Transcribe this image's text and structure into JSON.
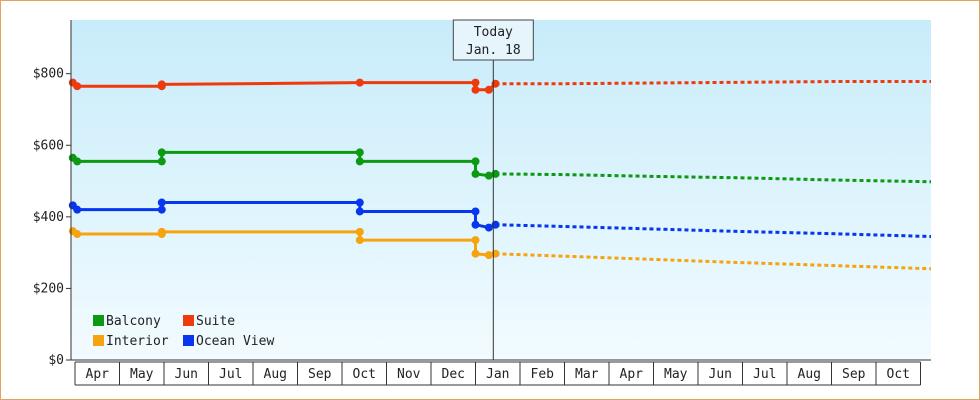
{
  "chart_data": {
    "type": "line",
    "title": "",
    "xlabel": "",
    "ylabel": "",
    "ylim": [
      0,
      950
    ],
    "y_ticks": [
      {
        "value": 0,
        "label": "$0"
      },
      {
        "value": 200,
        "label": "$200"
      },
      {
        "value": 400,
        "label": "$400"
      },
      {
        "value": 600,
        "label": "$600"
      },
      {
        "value": 800,
        "label": "$800"
      }
    ],
    "x_ticks": [
      "Apr",
      "May",
      "Jun",
      "Jul",
      "Aug",
      "Sep",
      "Oct",
      "Nov",
      "Dec",
      "Jan",
      "Feb",
      "Mar",
      "Apr",
      "May",
      "Jun",
      "Jul",
      "Aug",
      "Sep",
      "Oct"
    ],
    "grid": false,
    "legend_position": "bottom-left",
    "today_marker": {
      "line1": "Today",
      "line2": "Jan. 18",
      "x": 9.4
    },
    "series": [
      {
        "name": "Suite",
        "color": "#ee3a0c",
        "history": [
          [
            -0.05,
            775
          ],
          [
            0.05,
            765
          ],
          [
            1.95,
            765
          ],
          [
            1.95,
            770
          ],
          [
            6.4,
            775
          ],
          [
            9.0,
            775
          ],
          [
            9.0,
            755
          ],
          [
            9.3,
            755
          ],
          [
            9.45,
            772
          ]
        ],
        "forecast": [
          [
            9.45,
            772
          ],
          [
            11.0,
            772
          ],
          [
            13.0,
            774
          ],
          [
            15.0,
            776
          ],
          [
            17.0,
            778
          ],
          [
            19.3,
            778
          ]
        ],
        "markers": [
          [
            -0.05,
            775
          ],
          [
            0.05,
            765
          ],
          [
            1.95,
            765
          ],
          [
            1.95,
            770
          ],
          [
            6.4,
            775
          ],
          [
            9.0,
            775
          ],
          [
            9.0,
            755
          ],
          [
            9.3,
            755
          ],
          [
            9.45,
            772
          ]
        ]
      },
      {
        "name": "Balcony",
        "color": "#0b9a11",
        "history": [
          [
            -0.05,
            565
          ],
          [
            0.05,
            555
          ],
          [
            1.95,
            555
          ],
          [
            1.95,
            580
          ],
          [
            6.4,
            580
          ],
          [
            6.4,
            555
          ],
          [
            9.0,
            555
          ],
          [
            9.0,
            520
          ],
          [
            9.3,
            515
          ],
          [
            9.45,
            520
          ]
        ],
        "forecast": [
          [
            9.45,
            520
          ],
          [
            11.0,
            518
          ],
          [
            13.0,
            513
          ],
          [
            15.0,
            509
          ],
          [
            17.0,
            503
          ],
          [
            19.3,
            498
          ]
        ],
        "markers": [
          [
            -0.05,
            565
          ],
          [
            0.05,
            555
          ],
          [
            1.95,
            555
          ],
          [
            1.95,
            580
          ],
          [
            6.4,
            580
          ],
          [
            6.4,
            555
          ],
          [
            9.0,
            555
          ],
          [
            9.0,
            520
          ],
          [
            9.3,
            515
          ],
          [
            9.45,
            520
          ]
        ]
      },
      {
        "name": "Ocean View",
        "color": "#0636ee",
        "history": [
          [
            -0.05,
            432
          ],
          [
            0.05,
            420
          ],
          [
            1.95,
            420
          ],
          [
            1.95,
            440
          ],
          [
            6.4,
            440
          ],
          [
            6.4,
            415
          ],
          [
            9.0,
            415
          ],
          [
            9.0,
            378
          ],
          [
            9.3,
            370
          ],
          [
            9.45,
            378
          ]
        ],
        "forecast": [
          [
            9.45,
            378
          ],
          [
            11.0,
            373
          ],
          [
            13.0,
            366
          ],
          [
            15.0,
            359
          ],
          [
            17.0,
            353
          ],
          [
            19.3,
            345
          ]
        ],
        "markers": [
          [
            -0.05,
            432
          ],
          [
            0.05,
            420
          ],
          [
            1.95,
            420
          ],
          [
            1.95,
            440
          ],
          [
            6.4,
            440
          ],
          [
            6.4,
            415
          ],
          [
            9.0,
            415
          ],
          [
            9.0,
            378
          ],
          [
            9.3,
            370
          ],
          [
            9.45,
            378
          ]
        ]
      },
      {
        "name": "Interior",
        "color": "#f5a30e",
        "history": [
          [
            -0.05,
            360
          ],
          [
            0.05,
            352
          ],
          [
            1.95,
            352
          ],
          [
            1.95,
            358
          ],
          [
            6.4,
            358
          ],
          [
            6.4,
            335
          ],
          [
            9.0,
            335
          ],
          [
            9.0,
            297
          ],
          [
            9.3,
            293
          ],
          [
            9.45,
            297
          ]
        ],
        "forecast": [
          [
            9.45,
            297
          ],
          [
            11.0,
            290
          ],
          [
            13.0,
            281
          ],
          [
            15.0,
            272
          ],
          [
            17.0,
            264
          ],
          [
            19.3,
            255
          ]
        ],
        "markers": [
          [
            -0.05,
            360
          ],
          [
            0.05,
            352
          ],
          [
            1.95,
            352
          ],
          [
            1.95,
            358
          ],
          [
            6.4,
            358
          ],
          [
            6.4,
            335
          ],
          [
            9.0,
            335
          ],
          [
            9.0,
            297
          ],
          [
            9.3,
            293
          ],
          [
            9.45,
            297
          ]
        ]
      }
    ],
    "legend": [
      {
        "label": "Balcony",
        "color": "#0b9a11"
      },
      {
        "label": "Suite",
        "color": "#ee3a0c"
      },
      {
        "label": "Interior",
        "color": "#f5a30e"
      },
      {
        "label": "Ocean View",
        "color": "#0636ee"
      }
    ]
  }
}
